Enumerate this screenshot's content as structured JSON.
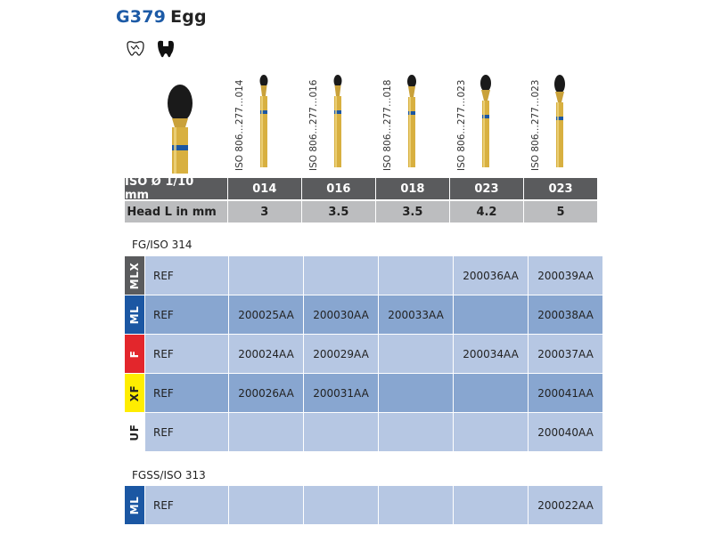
{
  "title": {
    "code": "G379",
    "name": "Egg"
  },
  "icons": [
    "tooth-crown-prep-icon",
    "tooth-cavity-icon"
  ],
  "iso_labels": [
    "ISO 806…277…014",
    "ISO 806…277…016",
    "ISO 806…277…018",
    "ISO 806…277…023",
    "ISO 806…277…023"
  ],
  "spec": {
    "row1": {
      "header": "ISO Ø 1/10 mm",
      "values": [
        "014",
        "016",
        "018",
        "023",
        "023"
      ]
    },
    "row2": {
      "header": "Head L in mm",
      "values": [
        "3",
        "3.5",
        "3.5",
        "4.2",
        "5"
      ]
    }
  },
  "sections": [
    {
      "label": "FG/ISO 314",
      "rows": [
        {
          "grit": "MLX",
          "grit_color": "#5a5b5d",
          "grit_text_color": "#ffffff",
          "ref": "REF",
          "values": [
            "",
            "",
            "",
            "200036AA",
            "200039AA"
          ]
        },
        {
          "grit": "ML",
          "grit_color": "#1b57a3",
          "grit_text_color": "#ffffff",
          "ref": "REF",
          "values": [
            "200025AA",
            "200030AA",
            "200033AA",
            "",
            "200038AA"
          ]
        },
        {
          "grit": "F",
          "grit_color": "#e3262c",
          "grit_text_color": "#ffffff",
          "ref": "REF",
          "values": [
            "200024AA",
            "200029AA",
            "",
            "200034AA",
            "200037AA"
          ]
        },
        {
          "grit": "XF",
          "grit_color": "#ffed00",
          "grit_text_color": "#222222",
          "ref": "REF",
          "values": [
            "200026AA",
            "200031AA",
            "",
            "",
            "200041AA"
          ]
        },
        {
          "grit": "UF",
          "grit_color": "#ffffff",
          "grit_text_color": "#222222",
          "ref": "REF",
          "values": [
            "",
            "",
            "",
            "",
            "200040AA"
          ]
        }
      ]
    },
    {
      "label": "FGSS/ISO 313",
      "rows": [
        {
          "grit": "ML",
          "grit_color": "#1b57a3",
          "grit_text_color": "#ffffff",
          "ref": "REF",
          "values": [
            "",
            "",
            "",
            "",
            "200022AA"
          ]
        }
      ]
    }
  ]
}
